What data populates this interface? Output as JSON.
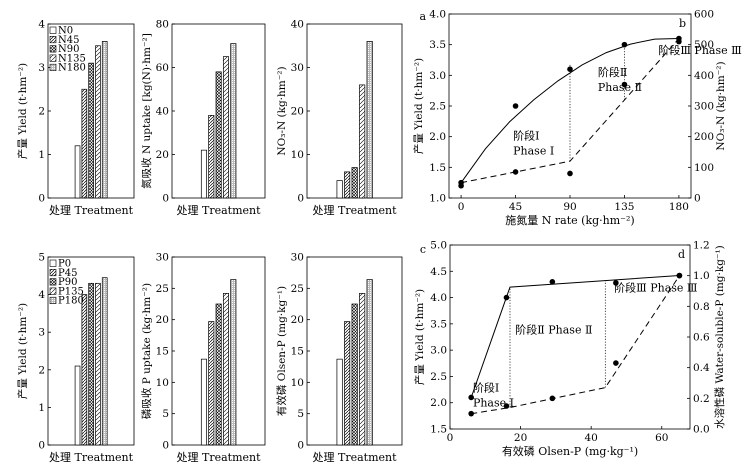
{
  "chart_data": [
    {
      "id": "a1",
      "type": "bar",
      "panel_letter": "",
      "categories": [
        "N0",
        "N45",
        "N90",
        "N135",
        "N180"
      ],
      "values": [
        1.2,
        2.5,
        3.1,
        3.5,
        3.6
      ],
      "xlabel": "处理 Treatment",
      "ylabel": "产量 Yield (t·hm⁻²)",
      "ylim": [
        0,
        4
      ],
      "yticks": [
        0,
        1,
        2,
        3,
        4
      ],
      "legend": [
        "N0",
        "N45",
        "N90",
        "N135",
        "N180"
      ],
      "legend_position": "top-left"
    },
    {
      "id": "a2",
      "type": "bar",
      "panel_letter": "",
      "categories": [
        "N0",
        "N45",
        "N90",
        "N135",
        "N180"
      ],
      "values": [
        22,
        38,
        58,
        65,
        71
      ],
      "xlabel": "处理 Treatment",
      "ylabel": "氮吸收 N uptake [kg(N)·hm⁻²]",
      "ylim": [
        0,
        80
      ],
      "yticks": [
        0,
        20,
        40,
        60,
        80
      ]
    },
    {
      "id": "a3",
      "type": "bar",
      "panel_letter": "a",
      "categories": [
        "N0",
        "N45",
        "N90",
        "N135",
        "N180"
      ],
      "values": [
        4,
        6,
        7,
        26,
        36
      ],
      "xlabel": "处理 Treatment",
      "ylabel": "NO₃-N (kg·hm⁻²)",
      "ylim": [
        0,
        40
      ],
      "yticks": [
        0,
        10,
        20,
        30,
        40
      ]
    },
    {
      "id": "b",
      "type": "scatter",
      "panel_letter": "b",
      "xlabel": "施氮量 N rate (kg·hm⁻²)",
      "ylabel": "产量 Yield (t·hm⁻²)",
      "ylabel_right": "NO₃-N (kg·hm⁻²)",
      "xlim": [
        -10,
        190
      ],
      "xticks": [
        0,
        45,
        90,
        135,
        180
      ],
      "ylim": [
        1.0,
        4.0
      ],
      "yticks": [
        1.0,
        1.5,
        2.0,
        2.5,
        3.0,
        3.5,
        4.0
      ],
      "ylim_right": [
        0,
        600
      ],
      "yticks_right": [
        0,
        100,
        200,
        300,
        400,
        500,
        600
      ],
      "series": [
        {
          "axis": "left",
          "marker": "circle",
          "x": [
            0,
            45,
            90,
            135,
            180
          ],
          "y": [
            1.25,
            2.5,
            3.1,
            3.5,
            3.6
          ]
        },
        {
          "axis": "right",
          "marker": "circle",
          "x": [
            0,
            45,
            90,
            135,
            180
          ],
          "y": [
            40,
            85,
            80,
            370,
            510
          ]
        }
      ],
      "curves": [
        {
          "axis": "left",
          "style": "solid",
          "x": [
            0,
            20,
            40,
            60,
            80,
            100,
            120,
            140,
            160,
            180
          ],
          "y": [
            1.25,
            1.8,
            2.24,
            2.6,
            2.91,
            3.17,
            3.37,
            3.51,
            3.59,
            3.6
          ]
        },
        {
          "axis": "right",
          "style": "dashed",
          "x": [
            0,
            90,
            135,
            180
          ],
          "y": [
            50,
            120,
            320,
            520
          ]
        }
      ],
      "vlines": [
        {
          "x": 90,
          "y_from_right": 120,
          "y_to_left": 3.17
        },
        {
          "x": 135,
          "y_from_right": 320,
          "y_to_left": 3.51
        }
      ],
      "annotations": [
        {
          "lines": [
            "阶段Ⅰ",
            "Phase Ⅰ"
          ],
          "x": 43,
          "y": 1.95
        },
        {
          "lines": [
            "阶段Ⅱ",
            "Phase Ⅱ"
          ],
          "x": 113,
          "y": 2.99
        },
        {
          "lines": [
            "阶段Ⅲ Phase Ⅲ"
          ],
          "x": 163,
          "y": 3.35
        }
      ]
    },
    {
      "id": "c1",
      "type": "bar",
      "panel_letter": "",
      "categories": [
        "P0",
        "P45",
        "P90",
        "P135",
        "P180"
      ],
      "values": [
        2.1,
        4.0,
        4.3,
        4.3,
        4.45
      ],
      "xlabel": "处理 Treatment",
      "ylabel": "产量 Yield (t·hm⁻²)",
      "ylim": [
        0,
        5
      ],
      "yticks": [
        0,
        1,
        2,
        3,
        4,
        5
      ],
      "legend": [
        "P0",
        "P45",
        "P90",
        "P135",
        "P180"
      ],
      "legend_position": "top-left"
    },
    {
      "id": "c2",
      "type": "bar",
      "panel_letter": "",
      "categories": [
        "P0",
        "P45",
        "P90",
        "P135",
        "P180"
      ],
      "values": [
        13.7,
        19.7,
        22.5,
        24.2,
        26.4
      ],
      "xlabel": "处理 Treatment",
      "ylabel": "磷吸收 P uptake (kg·hm⁻²)",
      "ylim": [
        0,
        30
      ],
      "yticks": [
        0,
        5,
        10,
        15,
        20,
        25,
        30
      ]
    },
    {
      "id": "c3",
      "type": "bar",
      "panel_letter": "c",
      "categories": [
        "P0",
        "P45",
        "P90",
        "P135",
        "P180"
      ],
      "values": [
        13.7,
        19.7,
        22.5,
        24.2,
        26.4
      ],
      "xlabel": "处理 Treatment",
      "ylabel": "有效磷 Olsen-P (mg·kg⁻¹)",
      "ylim": [
        0,
        30
      ],
      "yticks": [
        0,
        5,
        10,
        15,
        20,
        25,
        30
      ]
    },
    {
      "id": "d",
      "type": "scatter",
      "panel_letter": "d",
      "xlabel": "有效磷 Olsen-P (mg·kg⁻¹)",
      "ylabel": "产量 Yield (t·hm⁻²)",
      "ylabel_right": "水溶性磷 Water-soluble-P (mg·kg⁻¹)",
      "xlim": [
        0,
        68
      ],
      "xticks": [
        0,
        20,
        40,
        60
      ],
      "ylim": [
        1.5,
        5.0
      ],
      "yticks": [
        1.5,
        2.0,
        2.5,
        3.0,
        3.5,
        4.0,
        4.5,
        5.0
      ],
      "ylim_right": [
        0,
        1.2
      ],
      "yticks_right": [
        0,
        0.2,
        0.4,
        0.6,
        0.8,
        1.0,
        1.2
      ],
      "series": [
        {
          "axis": "left",
          "marker": "circle",
          "x": [
            6,
            16,
            29,
            47,
            65
          ],
          "y": [
            2.1,
            4.0,
            4.3,
            4.28,
            4.42
          ]
        },
        {
          "axis": "right",
          "marker": "circle",
          "x": [
            6,
            16,
            29,
            47,
            65
          ],
          "y": [
            0.1,
            0.15,
            0.2,
            0.43,
            1.0
          ]
        }
      ],
      "curves": [
        {
          "axis": "left",
          "style": "solid",
          "x": [
            6,
            17,
            65
          ],
          "y": [
            2.1,
            4.2,
            4.42
          ]
        },
        {
          "axis": "right",
          "style": "dashed",
          "x": [
            6,
            17,
            44,
            65
          ],
          "y": [
            0.1,
            0.14,
            0.27,
            1.0
          ]
        }
      ],
      "vlines": [
        {
          "x": 17,
          "y_from_right": 0.14,
          "y_to_left": 4.2
        },
        {
          "x": 44,
          "y_from_right": 0.27,
          "y_to_left": 4.33
        }
      ],
      "annotations": [
        {
          "lines": [
            "阶段Ⅰ",
            "Phase Ⅰ"
          ],
          "x": 6.5,
          "y": 2.21
        },
        {
          "lines": [
            "阶段Ⅱ Phase Ⅱ"
          ],
          "x": 18.5,
          "y": 3.32
        },
        {
          "lines": [
            "阶段Ⅲ Phase Ⅲ"
          ],
          "x": 46.5,
          "y": 4.12
        }
      ]
    }
  ]
}
